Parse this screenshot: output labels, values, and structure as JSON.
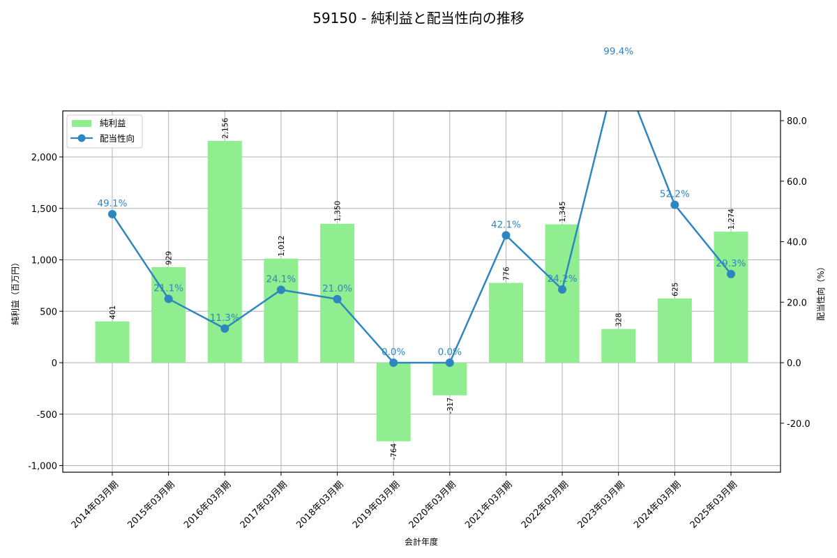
{
  "chart_data": {
    "type": "bar+line",
    "title": "59150 - 純利益と配当性向の推移",
    "xlabel": "会計年度",
    "ylabel": "純利益（百万円）",
    "y2label": "配当性向（%）",
    "categories": [
      "2014年03月期",
      "2015年03月期",
      "2016年03月期",
      "2017年03月期",
      "2018年03月期",
      "2019年03月期",
      "2020年03月期",
      "2021年03月期",
      "2022年03月期",
      "2023年03月期",
      "2024年03月期",
      "2025年03月期"
    ],
    "series": [
      {
        "name": "純利益",
        "type": "bar",
        "axis": "left",
        "color": "#90ee90",
        "values": [
          401,
          929,
          2156,
          1012,
          1350,
          -764,
          -317,
          776,
          1345,
          328,
          625,
          1274
        ],
        "labels": [
          "401",
          "929",
          "2,156",
          "1,012",
          "1,350",
          "-764",
          "-317",
          "776",
          "1,345",
          "328",
          "625",
          "1,274"
        ]
      },
      {
        "name": "配当性向",
        "type": "line",
        "axis": "right",
        "color": "#2e86c1",
        "values": [
          49.1,
          21.1,
          11.3,
          24.1,
          21.0,
          0.0,
          0.0,
          42.1,
          24.2,
          99.4,
          52.2,
          29.3
        ],
        "labels": [
          "49.1%",
          "21.1%",
          "11.3%",
          "24.1%",
          "21.0%",
          "0.0%",
          "0.0%",
          "42.1%",
          "24.2%",
          "99.4%",
          "52.2%",
          "29.3%"
        ]
      }
    ],
    "y_ticks": [
      -1000,
      -500,
      0,
      500,
      1000,
      1500,
      2000
    ],
    "y_tick_labels": [
      "-1,000",
      "-500",
      "0",
      "500",
      "1,000",
      "1,500",
      "2,000"
    ],
    "ylim": [
      -1050,
      2450
    ],
    "y2_ticks": [
      -20,
      0,
      20,
      40,
      60,
      80
    ],
    "y2_tick_labels": [
      "-20.0",
      "0.0",
      "20.0",
      "40.0",
      "60.0",
      "80.0"
    ],
    "y2lim": [
      -36.3,
      83.2
    ],
    "grid": true,
    "legend_position": "upper left"
  },
  "legend": {
    "bar_label": "純利益",
    "line_label": "配当性向"
  }
}
